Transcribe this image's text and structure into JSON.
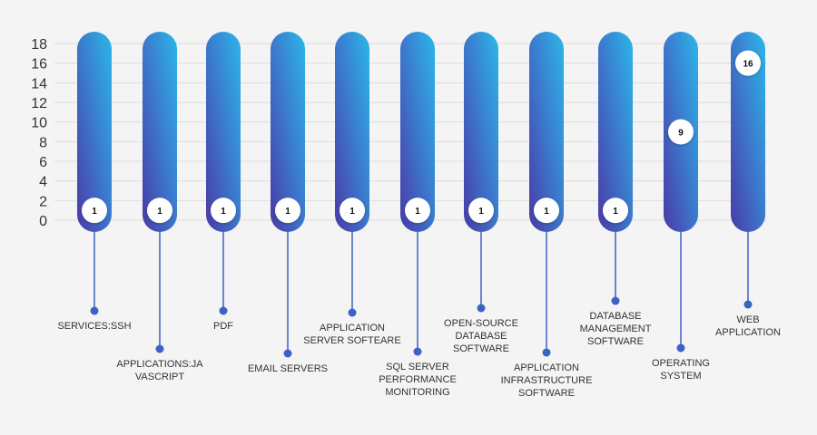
{
  "chart_data": {
    "type": "bar",
    "title": "",
    "xlabel": "",
    "ylabel": "",
    "ylim": [
      0,
      18
    ],
    "yticks": [
      "0",
      "2",
      "4",
      "6",
      "8",
      "10",
      "12",
      "14",
      "16",
      "18"
    ],
    "grid": true,
    "categories": [
      "SERVICES:SSH",
      "APPLICATIONS:JAVASCRIPT",
      "PDF",
      "EMAIL SERVERS",
      "APPLICATION SERVER SOFTEARE",
      "SQL SERVER PERFORMANCE MONITORING",
      "OPEN-SOURCE DATABASE SOFTWARE",
      "APPLICATION INFRASTRUCTURE SOFTWARE",
      "DATABASE MANAGEMENT SOFTWARE",
      "OPERATING SYSTEM",
      "WEB APPLICATION"
    ],
    "category_label_lines": [
      [
        "SERVICES:SSH"
      ],
      [
        "APPLICATIONS:JA",
        "VASCRIPT"
      ],
      [
        "PDF"
      ],
      [
        "EMAIL SERVERS"
      ],
      [
        "APPLICATION",
        "SERVER SOFTEARE"
      ],
      [
        "SQL SERVER",
        "PERFORMANCE",
        "MONITORING"
      ],
      [
        "OPEN-SOURCE",
        "DATABASE",
        "SOFTWARE"
      ],
      [
        "APPLICATION",
        "INFRASTRUCTURE",
        "SOFTWARE"
      ],
      [
        "DATABASE",
        "MANAGEMENT",
        "SOFTWARE"
      ],
      [
        "OPERATING",
        "SYSTEM"
      ],
      [
        "WEB",
        "APPLICATION"
      ]
    ],
    "values": [
      1,
      1,
      1,
      1,
      1,
      1,
      1,
      1,
      1,
      9,
      16
    ],
    "data_labels": [
      "1",
      "1",
      "1",
      "1",
      "1",
      "1",
      "1",
      "1",
      "1",
      "9",
      "16"
    ],
    "colors": {
      "bar_top": "#2bb7e8",
      "bar_bottom": "#4a3aa6",
      "connector": "#3a63c4",
      "grid": "#dcdcdc",
      "tick_text": "#333333",
      "label_text": "#333333"
    }
  }
}
